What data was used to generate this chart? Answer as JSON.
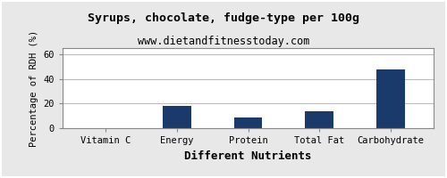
{
  "title": "Syrups, chocolate, fudge-type per 100g",
  "subtitle": "www.dietandfitnesstoday.com",
  "xlabel": "Different Nutrients",
  "ylabel": "Percentage of RDH (%)",
  "categories": [
    "Vitamin C",
    "Energy",
    "Protein",
    "Total Fat",
    "Carbohydrate"
  ],
  "values": [
    0,
    18,
    9,
    14,
    48
  ],
  "bar_color": "#1a3a6b",
  "ylim": [
    0,
    65
  ],
  "yticks": [
    0,
    20,
    40,
    60
  ],
  "background_color": "#e8e8e8",
  "plot_bg_color": "#ffffff",
  "title_fontsize": 9.5,
  "subtitle_fontsize": 8.5,
  "xlabel_fontsize": 9,
  "ylabel_fontsize": 7.5,
  "tick_fontsize": 7.5,
  "grid_color": "#bbbbbb",
  "border_color": "#888888"
}
